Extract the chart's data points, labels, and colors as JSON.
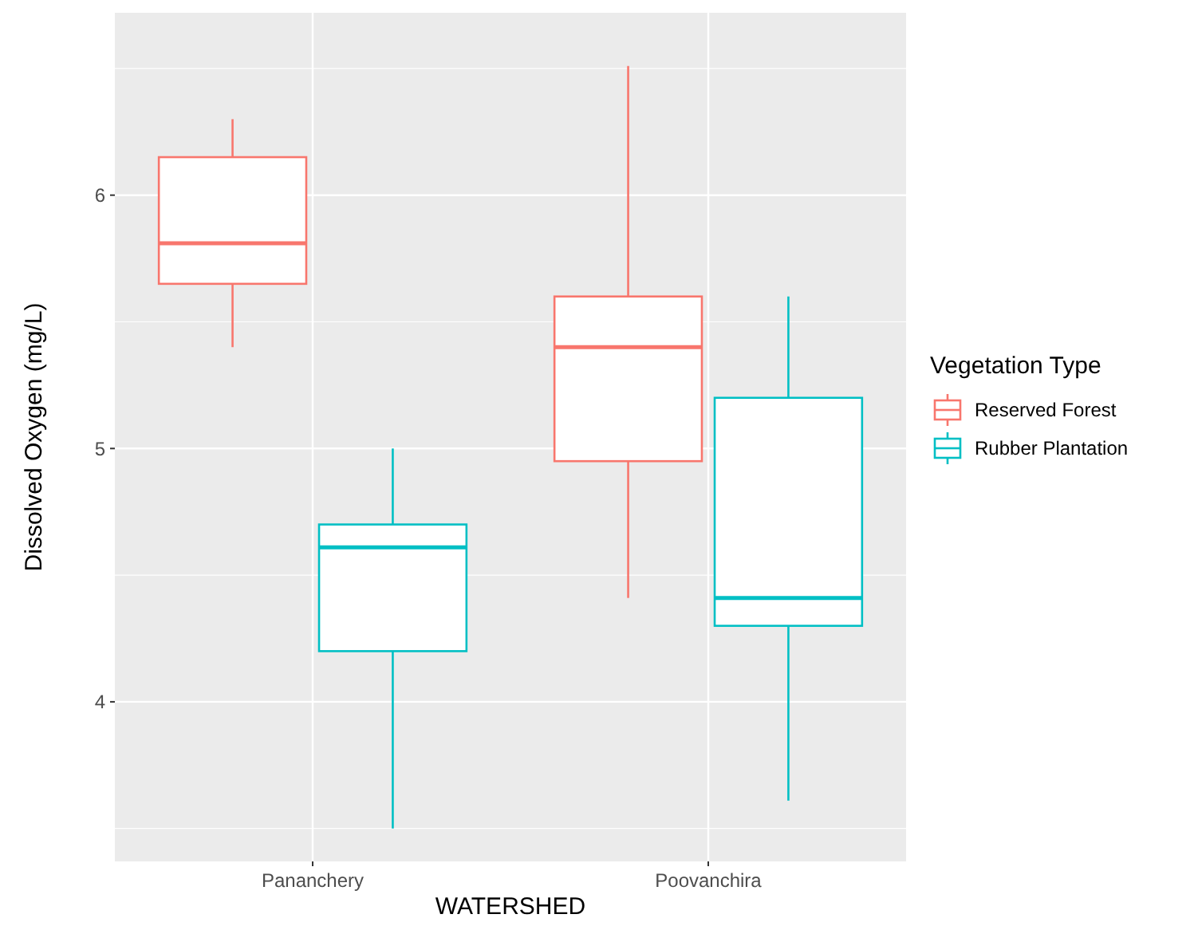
{
  "chart_data": {
    "type": "box",
    "xlabel": "WATERSHED",
    "ylabel": "Dissolved Oxygen (mg/L)",
    "legend_title": "Vegetation Type",
    "categories": [
      "Pananchery",
      "Poovanchira"
    ],
    "ylim": [
      3.37,
      6.72
    ],
    "yticks": [
      4,
      5,
      6
    ],
    "grid": true,
    "legend": "right",
    "series": [
      {
        "name": "Reserved Forest",
        "color": "#f8766d",
        "boxes": [
          {
            "low": 5.4,
            "q1": 5.65,
            "median": 5.81,
            "q3": 6.15,
            "high": 6.3
          },
          {
            "low": 4.41,
            "q1": 4.95,
            "median": 5.4,
            "q3": 5.6,
            "high": 6.51
          }
        ]
      },
      {
        "name": "Rubber Plantation",
        "color": "#00bfc4",
        "boxes": [
          {
            "low": 3.5,
            "q1": 4.2,
            "median": 4.61,
            "q3": 4.7,
            "high": 5.0
          },
          {
            "low": 3.61,
            "q1": 4.3,
            "median": 4.41,
            "q3": 5.2,
            "high": 5.6
          }
        ]
      }
    ]
  }
}
